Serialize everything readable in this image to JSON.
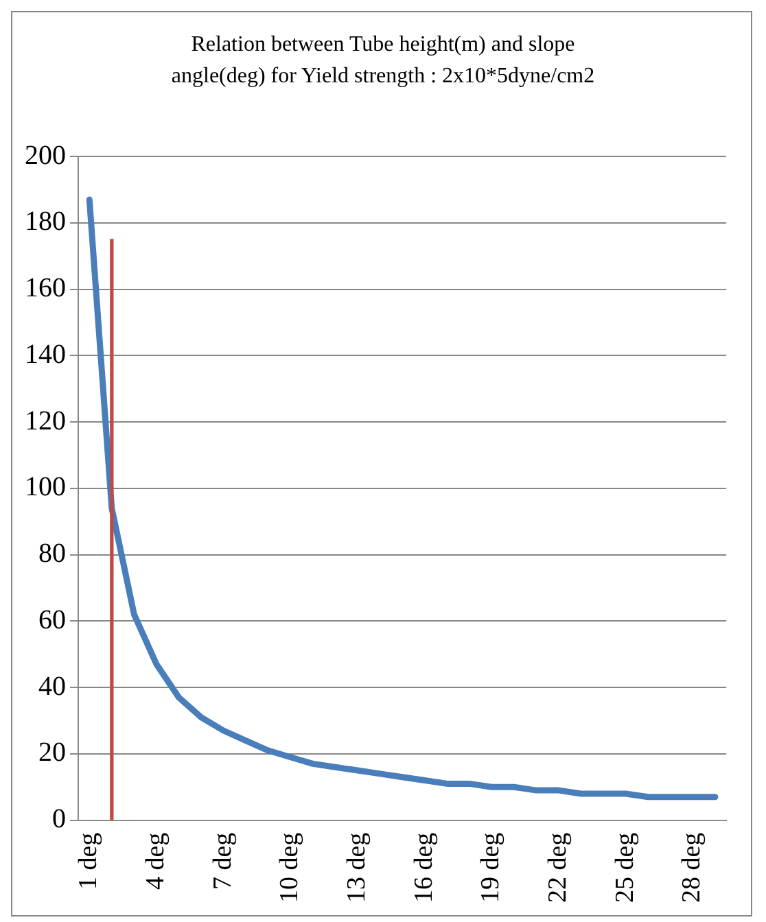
{
  "chart_data": {
    "type": "line",
    "title": "Relation between Tube height(m) and slope angle(deg) for Yield strength : 2x10*5dyne/cm2",
    "categories": [
      "1 deg",
      null,
      null,
      "4 deg",
      null,
      null,
      "7 deg",
      null,
      null,
      "10 deg",
      null,
      null,
      "13 deg",
      null,
      null,
      "16 deg",
      null,
      null,
      "19 deg",
      null,
      null,
      "22 deg",
      null,
      null,
      "25 deg",
      null,
      null,
      "28 deg",
      null
    ],
    "series": [
      {
        "color": "#4a7ebb",
        "values": [
          187,
          94,
          62,
          47,
          37,
          31,
          27,
          24,
          21,
          19,
          17,
          16,
          15,
          14,
          13,
          12,
          11,
          11,
          10,
          10,
          9,
          9,
          8,
          8,
          8,
          7,
          7,
          7,
          7
        ]
      },
      {
        "type": "bar",
        "color": "#be4b48",
        "values": [
          null,
          175,
          null,
          null,
          null,
          null,
          null,
          null,
          null,
          null,
          null,
          null,
          null,
          null,
          null,
          null,
          null,
          null,
          null,
          null,
          null,
          null,
          null,
          null,
          null,
          null,
          null,
          null,
          null
        ]
      }
    ],
    "ylim": [
      0,
      200
    ],
    "yticks": [
      0,
      20,
      40,
      60,
      80,
      100,
      120,
      140,
      160,
      180,
      200
    ],
    "grid": "y",
    "legend": false,
    "marker": "none"
  }
}
